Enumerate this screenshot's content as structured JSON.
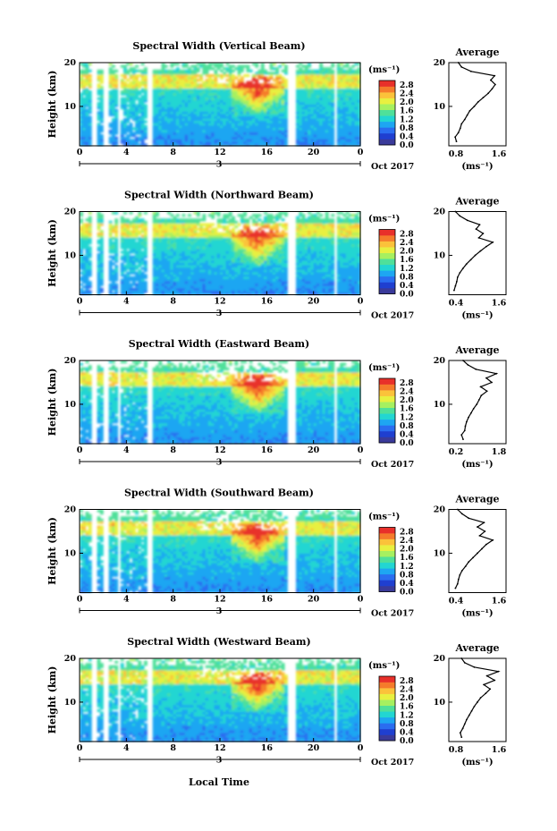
{
  "figure": {
    "xlabel": "Local Time",
    "colorbar_unit": "(ms⁻¹)",
    "colorbar_ticks": [
      "2.8",
      "2.4",
      "2.0",
      "1.6",
      "1.2",
      "0.8",
      "0.4",
      "0.0"
    ],
    "colorbar_colors": [
      "#3a3a9a",
      "#1f3fd0",
      "#2a6df0",
      "#1ea6f2",
      "#22d6d2",
      "#4fe09a",
      "#a6f060",
      "#e8f040",
      "#fbc23a",
      "#f57b2b",
      "#e8302a"
    ],
    "date_label": "Oct 2017",
    "day_label": "3",
    "profile_title": "Average",
    "profile_unit": "(ms⁻¹)",
    "x_ticks": [
      "0",
      "4",
      "8",
      "12",
      "16",
      "20",
      "0"
    ],
    "y_ticks": [
      "20",
      "10"
    ],
    "y_label": "Height (km)"
  },
  "chart_data": [
    {
      "type": "heatmap",
      "title": "Spectral Width (Vertical Beam)",
      "xlabel": "Local Time",
      "ylabel": "Height (km)",
      "xlim": [
        0,
        24
      ],
      "ylim": [
        1,
        20
      ],
      "clim": [
        0,
        3.0
      ],
      "profile": {
        "title": "Average",
        "xlabel": "(ms⁻¹)",
        "xlim": [
          0.7,
          1.6
        ],
        "x_ticks": [
          "0.8",
          "1.6"
        ],
        "height": [
          2,
          3,
          4,
          5,
          6,
          7,
          8,
          9,
          10,
          11,
          12,
          13,
          14,
          15,
          16,
          17,
          18,
          19,
          20
        ],
        "value": [
          0.82,
          0.8,
          0.85,
          0.88,
          0.9,
          0.95,
          0.99,
          1.03,
          1.1,
          1.16,
          1.24,
          1.32,
          1.38,
          1.43,
          1.36,
          1.42,
          1.05,
          0.9,
          0.85
        ]
      }
    },
    {
      "type": "heatmap",
      "title": "Spectral Width (Northward Beam)",
      "xlabel": "Local Time",
      "ylabel": "Height (km)",
      "xlim": [
        0,
        24
      ],
      "ylim": [
        1,
        20
      ],
      "clim": [
        0,
        3.0
      ],
      "profile": {
        "title": "Average",
        "xlabel": "(ms⁻¹)",
        "xlim": [
          0.3,
          1.6
        ],
        "x_ticks": [
          "0.4",
          "1.6"
        ],
        "height": [
          2,
          3,
          4,
          5,
          6,
          7,
          8,
          9,
          10,
          11,
          12,
          13,
          14,
          15,
          16,
          17,
          18,
          19,
          20
        ],
        "value": [
          0.42,
          0.45,
          0.48,
          0.5,
          0.55,
          0.62,
          0.7,
          0.8,
          0.9,
          1.02,
          1.15,
          1.3,
          0.98,
          1.08,
          0.92,
          1.0,
          0.72,
          0.55,
          0.45
        ]
      }
    },
    {
      "type": "heatmap",
      "title": "Spectral Width (Eastward Beam)",
      "xlabel": "Local Time",
      "ylabel": "Height (km)",
      "xlim": [
        0,
        24
      ],
      "ylim": [
        1,
        20
      ],
      "clim": [
        0,
        3.0
      ],
      "profile": {
        "title": "Average",
        "xlabel": "(ms⁻¹)",
        "xlim": [
          0.1,
          1.9
        ],
        "x_ticks": [
          "0.2",
          "1.8"
        ],
        "height": [
          2,
          3,
          4,
          5,
          6,
          7,
          8,
          9,
          10,
          11,
          12,
          13,
          14,
          15,
          16,
          17,
          18,
          19,
          20
        ],
        "value": [
          0.55,
          0.5,
          0.6,
          0.62,
          0.66,
          0.72,
          0.8,
          0.88,
          0.98,
          1.05,
          1.12,
          1.3,
          1.1,
          1.45,
          1.28,
          1.6,
          0.95,
          0.7,
          0.55
        ]
      }
    },
    {
      "type": "heatmap",
      "title": "Spectral Width (Southward Beam)",
      "xlabel": "Local Time",
      "ylabel": "Height (km)",
      "xlim": [
        0,
        24
      ],
      "ylim": [
        1,
        20
      ],
      "clim": [
        0,
        3.0
      ],
      "profile": {
        "title": "Average",
        "xlabel": "(ms⁻¹)",
        "xlim": [
          0.3,
          1.6
        ],
        "x_ticks": [
          "0.4",
          "1.6"
        ],
        "height": [
          2,
          3,
          4,
          5,
          6,
          7,
          8,
          9,
          10,
          11,
          12,
          13,
          14,
          15,
          16,
          17,
          18,
          19,
          20
        ],
        "value": [
          0.45,
          0.5,
          0.52,
          0.55,
          0.6,
          0.68,
          0.75,
          0.85,
          0.95,
          1.05,
          1.15,
          1.3,
          1.0,
          1.12,
          0.95,
          1.1,
          0.75,
          0.6,
          0.5
        ]
      }
    },
    {
      "type": "heatmap",
      "title": "Spectral Width (Westward Beam)",
      "xlabel": "Local Time",
      "ylabel": "Height (km)",
      "xlim": [
        0,
        24
      ],
      "ylim": [
        1,
        20
      ],
      "clim": [
        0,
        3.0
      ],
      "profile": {
        "title": "Average",
        "xlabel": "(ms⁻¹)",
        "xlim": [
          0.7,
          1.6
        ],
        "x_ticks": [
          "0.8",
          "1.6"
        ],
        "height": [
          2,
          3,
          4,
          5,
          6,
          7,
          8,
          9,
          10,
          11,
          12,
          13,
          14,
          15,
          16,
          17,
          18,
          19,
          20
        ],
        "value": [
          0.9,
          0.88,
          0.92,
          0.95,
          0.98,
          1.02,
          1.06,
          1.1,
          1.15,
          1.2,
          1.28,
          1.35,
          1.25,
          1.42,
          1.3,
          1.48,
          1.1,
          0.95,
          0.9
        ]
      }
    }
  ]
}
